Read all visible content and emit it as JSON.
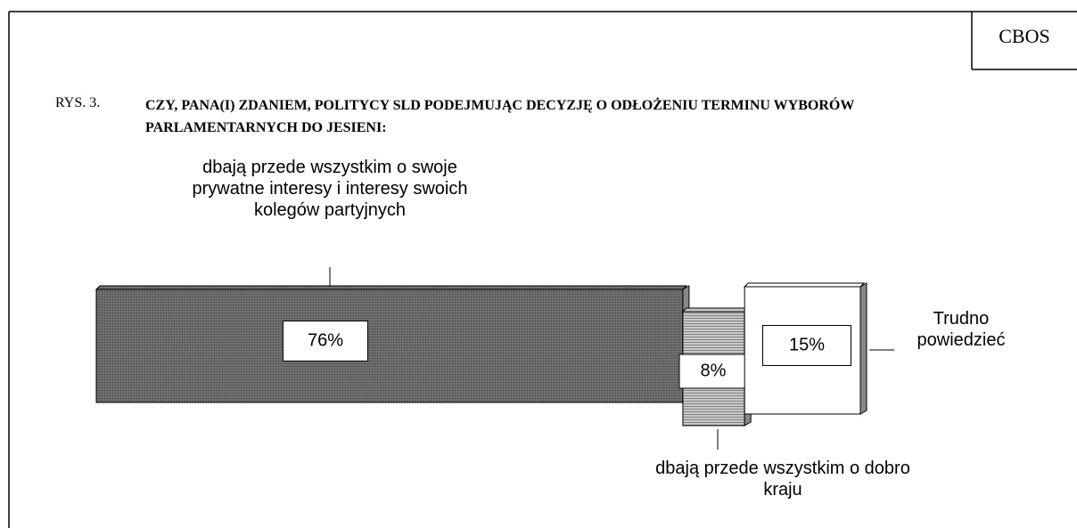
{
  "header": {
    "brand": "CBOS"
  },
  "chart_data": {
    "type": "stacked-bar",
    "figure_label": "RYS. 3.",
    "title": "CZY, PANA(I) ZDANIEM, POLITYCY SLD PODEJMUJĄC DECYZJĘ O ODŁOŻENIU TERMINU WYBORÓW PARLAMENTARNYCH DO JESIENI:",
    "series": [
      {
        "name": "dbają przede wszystkim o swoje prywatne interesy i interesy swoich kolegów partyjnych",
        "color": "#6e6e6e",
        "values": [
          76
        ],
        "value_labels": [
          "76%"
        ]
      },
      {
        "name": "dbają przede wszystkim o dobro kraju",
        "color": "#c8c8c8",
        "values": [
          8
        ],
        "value_labels": [
          "8%"
        ]
      },
      {
        "name": "Trudno powiedzieć",
        "color": "#ffffff",
        "values": [
          15
        ],
        "value_labels": [
          "15%"
        ]
      }
    ]
  }
}
